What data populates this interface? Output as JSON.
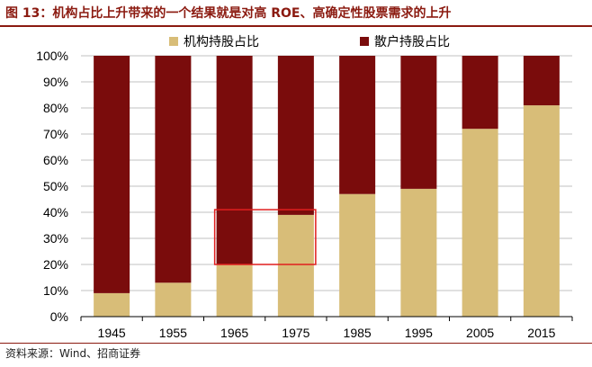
{
  "title": "图 13：机构占比上升带来的一个结果就是对高 ROE、高确定性股票需求的上升",
  "source": "资料来源：Wind、招商证券",
  "colors": {
    "institutional": "#d8bd78",
    "retail": "#7a0c0c",
    "highlight": "#e01e1e",
    "grid": "#c0c0c0",
    "title": "#8b1a10"
  },
  "chart_data": {
    "type": "bar",
    "stacked": true,
    "percent_stacked": true,
    "categories": [
      "1945",
      "1955",
      "1965",
      "1975",
      "1985",
      "1995",
      "2005",
      "2015"
    ],
    "series": [
      {
        "name": "机构持股占比",
        "values": [
          9,
          13,
          20,
          39,
          47,
          49,
          72,
          81
        ]
      },
      {
        "name": "散户持股占比",
        "values": [
          91,
          87,
          80,
          61,
          53,
          51,
          28,
          19
        ]
      }
    ],
    "y_ticks": [
      "0%",
      "10%",
      "20%",
      "30%",
      "40%",
      "50%",
      "60%",
      "70%",
      "80%",
      "90%",
      "100%"
    ],
    "ylim": [
      0,
      100
    ],
    "grid": true,
    "legend_position": "top",
    "annotation": {
      "type": "box",
      "categories": [
        "1965",
        "1975"
      ],
      "y_range": [
        20,
        41
      ]
    }
  }
}
